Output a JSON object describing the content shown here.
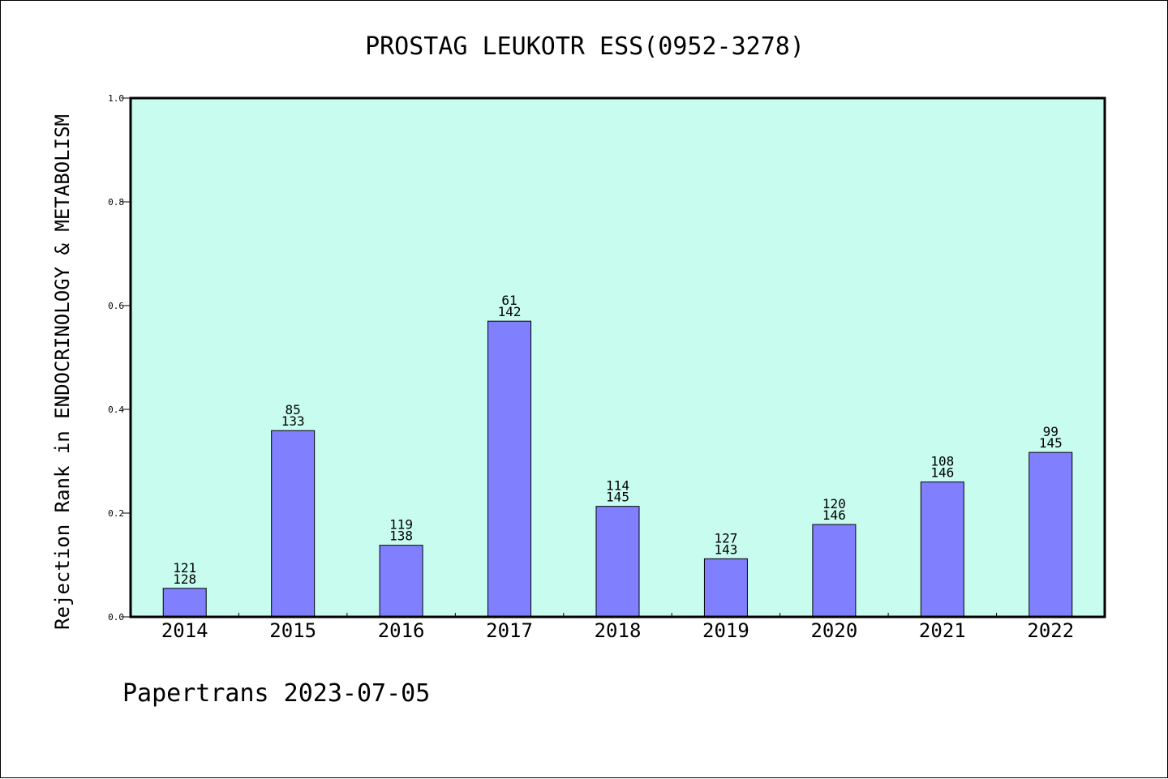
{
  "chart_data": {
    "type": "bar",
    "title": "PROSTAG LEUKOTR ESS(0952-3278)",
    "xlabel": "",
    "ylabel": "Rejection Rank in ENDOCRINOLOGY & METABOLISM",
    "ylim": [
      0,
      1.0
    ],
    "yticks": [
      "0.0",
      "0.2",
      "0.4",
      "0.6",
      "0.8",
      "1.0"
    ],
    "categories": [
      "2014",
      "2015",
      "2016",
      "2017",
      "2018",
      "2019",
      "2020",
      "2021",
      "2022"
    ],
    "values": [
      0.055,
      0.359,
      0.138,
      0.57,
      0.213,
      0.112,
      0.178,
      0.26,
      0.317
    ],
    "labels_top": [
      "121",
      "85",
      "119",
      "61",
      "114",
      "127",
      "120",
      "108",
      "99"
    ],
    "labels_bottom": [
      "128",
      "133",
      "138",
      "142",
      "145",
      "143",
      "146",
      "146",
      "145"
    ],
    "grid": false,
    "legend": "none",
    "colors": {
      "plot_background": "#c8fcee",
      "bar_fill": "#8080ff",
      "bar_stroke": "#000000"
    }
  },
  "footer": "Papertrans 2023-07-05"
}
